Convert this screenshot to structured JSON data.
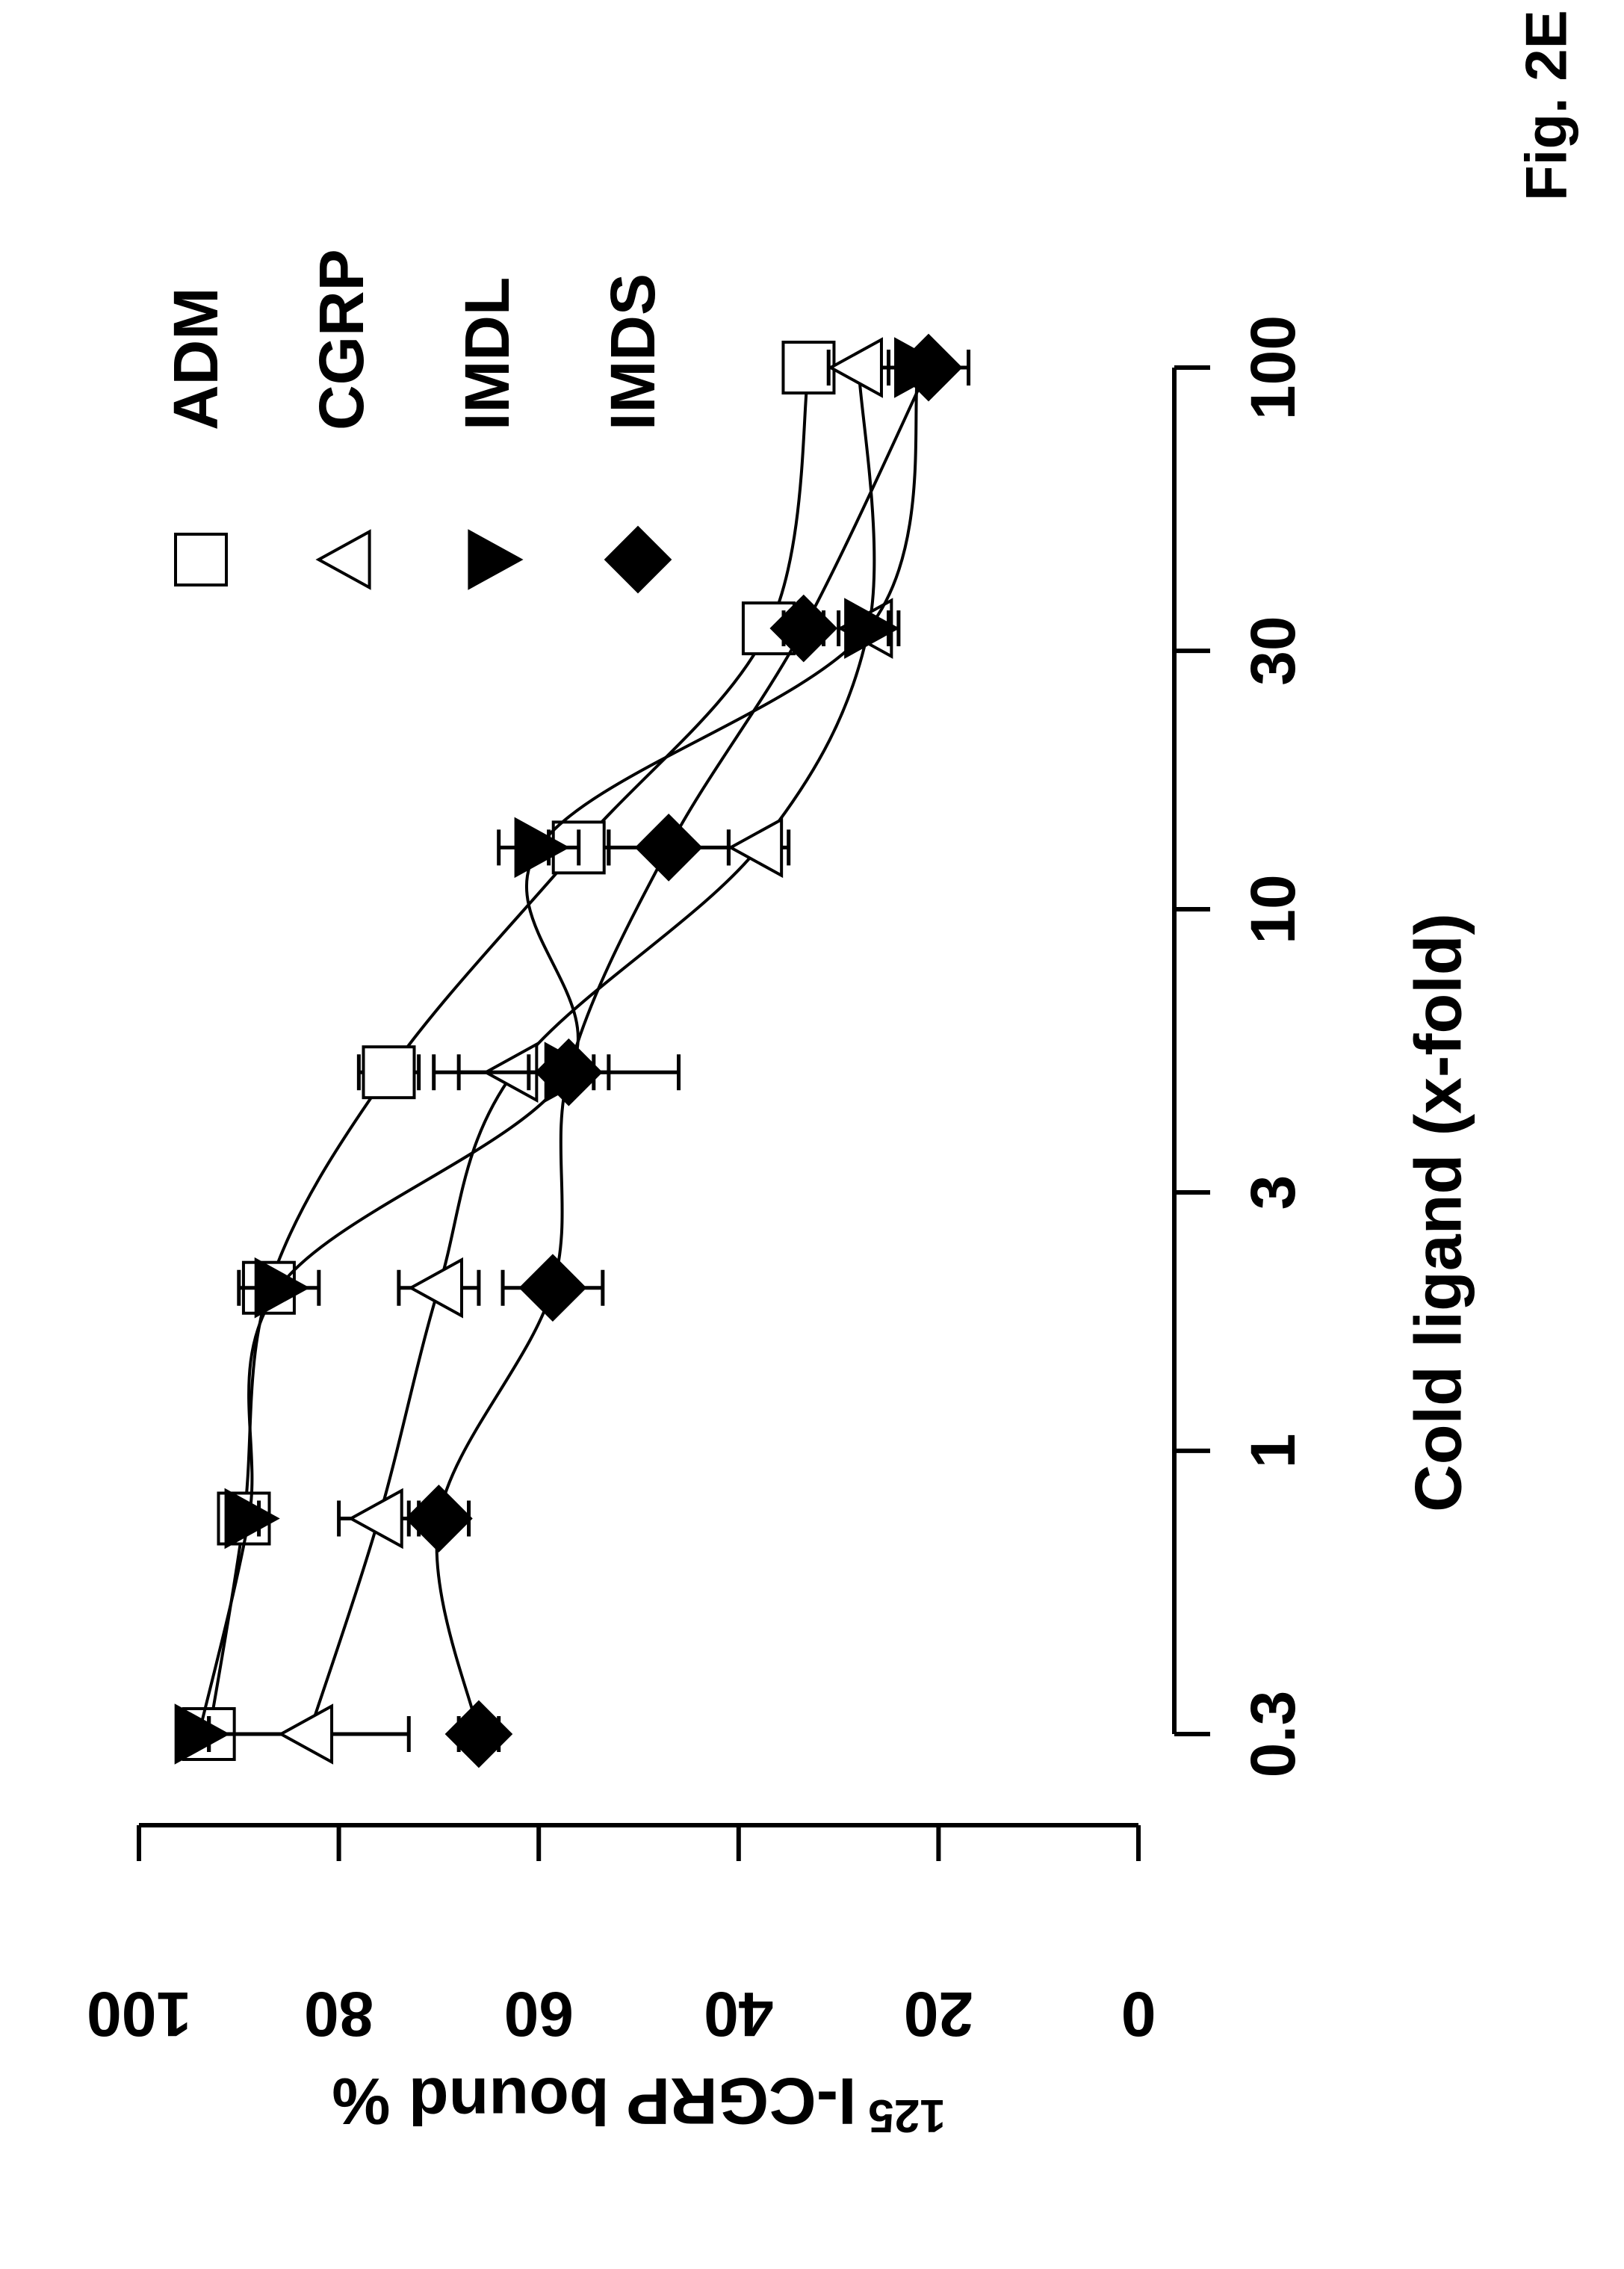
{
  "chart_data": {
    "type": "scatter",
    "figure_label": "Fig. 2E",
    "x_label": "Cold ligand (x-fold)",
    "y_label_superscript": "125",
    "y_label": "I-CGRP bound %",
    "log_x": true,
    "xlim": [
      0.3,
      100
    ],
    "xticks": [
      0.3,
      1,
      3,
      10,
      30,
      100
    ],
    "ylim": [
      0,
      100
    ],
    "yticks": [
      0,
      20,
      40,
      60,
      80,
      100
    ],
    "legend": "top-right",
    "x": [
      0.3,
      0.75,
      2,
      5,
      13,
      33,
      100
    ],
    "series": [
      {
        "name": "ADM",
        "marker": "square",
        "filled": false,
        "color": "#000000",
        "values": [
          93,
          89.5,
          87,
          75,
          56,
          37,
          33
        ],
        "errors": [
          2,
          2,
          2,
          3,
          3,
          2,
          1
        ]
      },
      {
        "name": "CGRP",
        "marker": "triangle-up",
        "filled": false,
        "color": "#000000",
        "values": [
          83,
          76,
          70,
          62.5,
          38,
          27,
          28
        ],
        "errors": [
          10,
          4,
          4,
          8,
          3,
          3,
          3
        ]
      },
      {
        "name": "IMDL",
        "marker": "triangle-down",
        "filled": true,
        "color": "#000000",
        "values": [
          94,
          89,
          86,
          57,
          60,
          27,
          22
        ],
        "errors": [
          1,
          1,
          4,
          4,
          4,
          2,
          2
        ]
      },
      {
        "name": "IMDS",
        "marker": "diamond",
        "filled": true,
        "color": "#000000",
        "values": [
          66,
          70,
          58.6,
          57,
          47,
          33.5,
          21
        ],
        "errors": [
          2,
          3,
          5,
          11,
          6,
          2,
          4
        ]
      }
    ]
  }
}
